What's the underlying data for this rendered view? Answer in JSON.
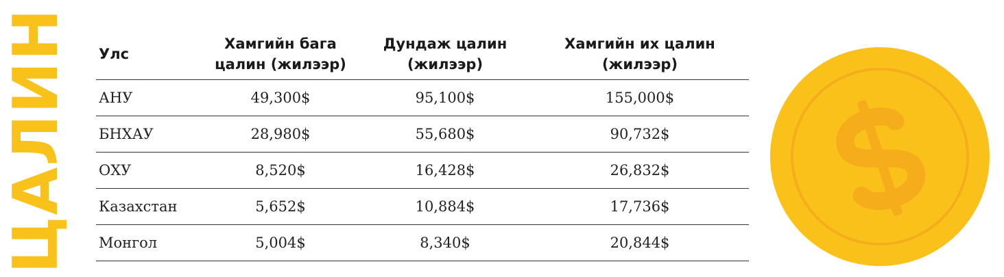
{
  "side_title": "ЦАЛИН",
  "table": {
    "headers": [
      "Улс",
      "Хамгийн бага цалин (жилээр)",
      "Дундаж цалин (жилээр)",
      "Хамгийн их цалин (жилээр)"
    ],
    "rows": [
      [
        "АНУ",
        "49,300$",
        "95,100$",
        "155,000$"
      ],
      [
        "БНХАУ",
        "28,980$",
        "55,680$",
        "90,732$"
      ],
      [
        "ОХУ",
        "8,520$",
        "16,428$",
        "26,832$"
      ],
      [
        "Казахстан",
        "5,652$",
        "10,884$",
        "17,736$"
      ],
      [
        "Монгол",
        "5,004$",
        "8,340$",
        "20,844$"
      ]
    ]
  },
  "coin": {
    "icon": "dollar-coin-icon",
    "colors": {
      "face": "#fbc11b",
      "rim": "#f6ad1c",
      "symbol": "#f6ad1c"
    }
  },
  "colors": {
    "accent": "#f9c21a"
  }
}
